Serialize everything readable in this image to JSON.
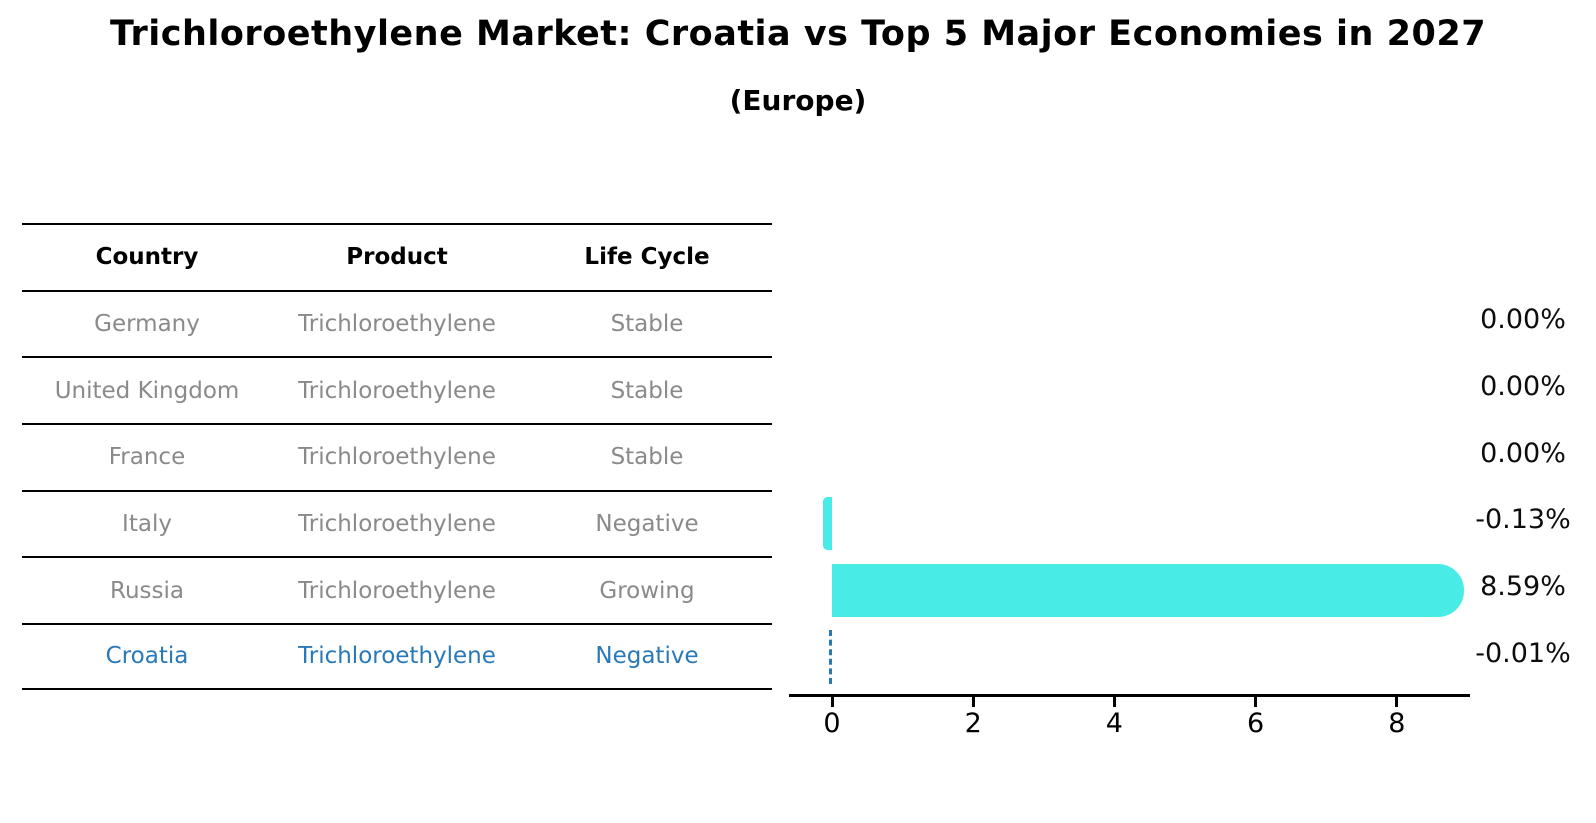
{
  "title": "Trichloroethylene Market: Croatia vs Top 5 Major Economies in 2027",
  "subtitle": "(Europe)",
  "colors": {
    "bar": "#48ebe6",
    "highlight": "#2979b8",
    "muted_text": "#8a8a8a",
    "axis": "#000000"
  },
  "table": {
    "columns": [
      "Country",
      "Product",
      "Life Cycle"
    ],
    "rows": [
      {
        "country": "Germany",
        "product": "Trichloroethylene",
        "life_cycle": "Stable",
        "highlight": false
      },
      {
        "country": "United Kingdom",
        "product": "Trichloroethylene",
        "life_cycle": "Stable",
        "highlight": false
      },
      {
        "country": "France",
        "product": "Trichloroethylene",
        "life_cycle": "Stable",
        "highlight": false
      },
      {
        "country": "Italy",
        "product": "Trichloroethylene",
        "life_cycle": "Negative",
        "highlight": false
      },
      {
        "country": "Russia",
        "product": "Trichloroethylene",
        "life_cycle": "Growing",
        "highlight": false
      },
      {
        "country": "Croatia",
        "product": "Trichloroethylene",
        "life_cycle": "Negative",
        "highlight": true
      }
    ]
  },
  "chart_data": {
    "type": "bar",
    "orientation": "horizontal",
    "title": "Trichloroethylene Market: Croatia vs Top 5 Major Economies in 2027 (Europe)",
    "xlabel": "",
    "ylabel": "",
    "categories": [
      "Germany",
      "United Kingdom",
      "France",
      "Italy",
      "Russia",
      "Croatia"
    ],
    "values": [
      0.0,
      0.0,
      0.0,
      -0.13,
      8.59,
      -0.01
    ],
    "value_labels": [
      "0.00%",
      "0.00%",
      "0.00%",
      "-0.13%",
      "8.59%",
      "-0.01%"
    ],
    "markers": [
      "none",
      "none",
      "none",
      "bar",
      "bar",
      "dashed"
    ],
    "x_ticks": [
      0,
      2,
      4,
      6,
      8
    ],
    "xlim": [
      -0.6,
      9.05
    ],
    "grid": false,
    "legend": "none"
  }
}
